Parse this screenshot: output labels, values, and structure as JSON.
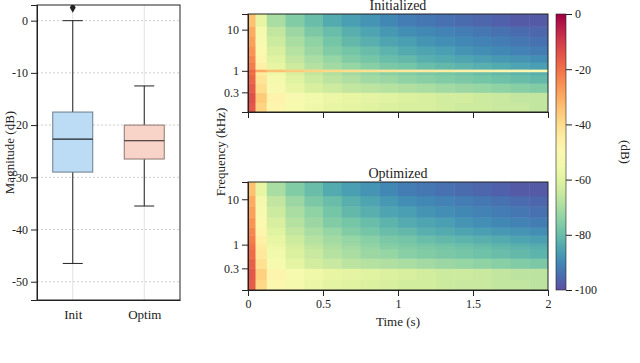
{
  "chart_data": [
    {
      "type": "box",
      "y_label": "Magnitude (dB)",
      "categories": [
        "Init",
        "Optim"
      ],
      "boxes": [
        {
          "min": -46.5,
          "q1": -29,
          "median": -22.7,
          "q3": -17.5,
          "max": 0,
          "outliers": [
            2.5
          ]
        },
        {
          "min": -35.5,
          "q1": -26.5,
          "median": -23,
          "q3": -20,
          "max": -12.5,
          "outliers": []
        }
      ],
      "colors": [
        "#bcdcf5",
        "#f8d3c7"
      ],
      "marker": "diamond",
      "ylim": [
        -53.5,
        3
      ],
      "yticks": [
        0,
        -10,
        -20,
        -30,
        -40,
        -50
      ],
      "grid": true
    },
    {
      "type": "heatmap",
      "title": "Initialized",
      "y_label": "Frequency (kHz)",
      "x_edges": [
        0,
        0.05,
        0.125,
        0.25,
        0.375,
        0.5,
        0.625,
        0.75,
        0.875,
        1,
        1.125,
        1.25,
        1.375,
        1.5,
        1.625,
        1.75,
        1.875,
        2
      ],
      "y_edges": [
        0.1,
        0.17,
        0.3,
        0.5,
        0.8,
        0.95,
        1.1,
        1.6,
        2.4,
        4,
        7,
        12,
        24
      ],
      "cells": [
        [
          -15,
          -38,
          -48,
          -53,
          -56,
          -58,
          -59,
          -60,
          -61,
          -62,
          -62,
          -63,
          -64,
          -64,
          -65,
          -65,
          -66
        ],
        [
          -14,
          -36,
          -47,
          -52,
          -55,
          -57,
          -58,
          -59,
          -60,
          -61,
          -62,
          -63,
          -63,
          -64,
          -65,
          -66,
          -66
        ],
        [
          -16,
          -40,
          -52,
          -58,
          -62,
          -64,
          -66,
          -67,
          -68,
          -69,
          -70,
          -71,
          -72,
          -73,
          -74,
          -75,
          -76
        ],
        [
          -18,
          -42,
          -54,
          -60,
          -64,
          -67,
          -69,
          -71,
          -72,
          -74,
          -75,
          -76,
          -77,
          -78,
          -79,
          -80,
          -81
        ],
        [
          -20,
          -44,
          -56,
          -62,
          -66,
          -69,
          -71,
          -73,
          -75,
          -76,
          -77,
          -78,
          -79,
          -80,
          -81,
          -82,
          -83
        ],
        [
          -18,
          -30,
          -34,
          -36,
          -38,
          -39,
          -40,
          -41,
          -42,
          -43,
          -44,
          -45,
          -46,
          -47,
          -48,
          -49,
          -50
        ],
        [
          -22,
          -46,
          -58,
          -64,
          -68,
          -71,
          -73,
          -75,
          -77,
          -78,
          -80,
          -81,
          -82,
          -83,
          -84,
          -85,
          -86
        ],
        [
          -24,
          -48,
          -60,
          -66,
          -70,
          -73,
          -76,
          -78,
          -80,
          -81,
          -83,
          -84,
          -85,
          -86,
          -87,
          -88,
          -89
        ],
        [
          -26,
          -50,
          -62,
          -68,
          -72,
          -76,
          -78,
          -80,
          -82,
          -84,
          -85,
          -86,
          -88,
          -89,
          -90,
          -91,
          -92
        ],
        [
          -28,
          -52,
          -64,
          -70,
          -74,
          -78,
          -81,
          -83,
          -85,
          -86,
          -88,
          -89,
          -90,
          -91,
          -92,
          -93,
          -94
        ],
        [
          -30,
          -54,
          -66,
          -72,
          -77,
          -80,
          -83,
          -85,
          -87,
          -89,
          -90,
          -91,
          -92,
          -93,
          -94,
          -95,
          -96
        ],
        [
          -34,
          -58,
          -70,
          -76,
          -80,
          -84,
          -86,
          -88,
          -90,
          -92,
          -93,
          -94,
          -95,
          -96,
          -97,
          -98,
          -98
        ]
      ],
      "xlim": [
        0,
        2
      ],
      "ylim": [
        0.1,
        24
      ],
      "xticks": [
        0,
        0.5,
        1,
        1.5,
        2
      ],
      "yticks": [
        0.3,
        1,
        10
      ],
      "log": "y",
      "tick_labels": "y",
      "colorbar": {
        "range": [
          -100,
          0
        ],
        "ticks": [
          0,
          -20,
          -40,
          -60,
          -80,
          -100
        ],
        "label": "(dB)"
      }
    },
    {
      "type": "heatmap",
      "title": "Optimized",
      "x_label": "Time (s)",
      "x_edges": [
        0,
        0.05,
        0.125,
        0.25,
        0.375,
        0.5,
        0.625,
        0.75,
        0.875,
        1,
        1.125,
        1.25,
        1.375,
        1.5,
        1.625,
        1.75,
        1.875,
        2
      ],
      "y_edges": [
        0.1,
        0.17,
        0.3,
        0.5,
        0.8,
        0.95,
        1.1,
        1.6,
        2.4,
        4,
        7,
        12,
        24
      ],
      "cells": [
        [
          -16,
          -39,
          -49,
          -54,
          -57,
          -59,
          -60,
          -61,
          -62,
          -63,
          -63,
          -64,
          -65,
          -65,
          -66,
          -66,
          -67
        ],
        [
          -15,
          -37,
          -48,
          -53,
          -56,
          -58,
          -59,
          -60,
          -61,
          -62,
          -63,
          -64,
          -64,
          -65,
          -66,
          -67,
          -67
        ],
        [
          -17,
          -41,
          -53,
          -59,
          -63,
          -65,
          -67,
          -68,
          -69,
          -70,
          -71,
          -72,
          -73,
          -74,
          -75,
          -76,
          -77
        ],
        [
          -19,
          -43,
          -55,
          -61,
          -65,
          -68,
          -70,
          -72,
          -73,
          -75,
          -76,
          -77,
          -78,
          -79,
          -80,
          -81,
          -82
        ],
        [
          -20,
          -44,
          -56,
          -62,
          -66,
          -69,
          -71,
          -73,
          -75,
          -76,
          -77,
          -78,
          -79,
          -80,
          -81,
          -82,
          -83
        ],
        [
          -21,
          -45,
          -57,
          -63,
          -67,
          -70,
          -72,
          -74,
          -76,
          -77,
          -78,
          -79,
          -80,
          -81,
          -82,
          -83,
          -84
        ],
        [
          -22,
          -46,
          -58,
          -64,
          -68,
          -71,
          -73,
          -75,
          -77,
          -78,
          -80,
          -81,
          -82,
          -83,
          -84,
          -85,
          -86
        ],
        [
          -24,
          -48,
          -60,
          -66,
          -70,
          -73,
          -76,
          -78,
          -80,
          -81,
          -83,
          -84,
          -85,
          -86,
          -87,
          -88,
          -89
        ],
        [
          -26,
          -50,
          -62,
          -68,
          -72,
          -76,
          -78,
          -80,
          -82,
          -84,
          -85,
          -86,
          -88,
          -89,
          -90,
          -91,
          -92
        ],
        [
          -28,
          -52,
          -64,
          -70,
          -74,
          -78,
          -81,
          -83,
          -85,
          -86,
          -88,
          -89,
          -90,
          -91,
          -92,
          -93,
          -94
        ],
        [
          -30,
          -54,
          -66,
          -72,
          -77,
          -80,
          -83,
          -85,
          -87,
          -89,
          -90,
          -91,
          -92,
          -93,
          -94,
          -95,
          -96
        ],
        [
          -34,
          -58,
          -70,
          -76,
          -80,
          -84,
          -86,
          -88,
          -90,
          -92,
          -93,
          -94,
          -95,
          -96,
          -97,
          -98,
          -98
        ]
      ],
      "xlim": [
        0,
        2
      ],
      "ylim": [
        0.1,
        24
      ],
      "xticks": [
        0,
        0.5,
        1,
        1.5,
        2
      ],
      "yticks": [
        0.3,
        1,
        10
      ],
      "log": "y"
    }
  ]
}
